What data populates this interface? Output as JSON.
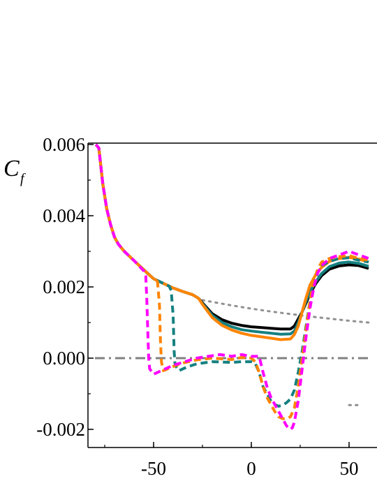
{
  "chart_data": {
    "type": "line",
    "title": "",
    "xlabel": "",
    "ylabel": {
      "main": "C",
      "sub": "f"
    },
    "xlim": [
      -80,
      60
    ],
    "ylim": [
      -0.0025,
      0.006
    ],
    "x_ticks": [
      {
        "value": -50,
        "label": "-50"
      },
      {
        "value": 0,
        "label": "0"
      },
      {
        "value": 50,
        "label": "50"
      }
    ],
    "y_ticks": [
      {
        "value": -0.002,
        "label": "-0.002"
      },
      {
        "value": 0.0,
        "label": "0.000"
      },
      {
        "value": 0.002,
        "label": "0.002"
      },
      {
        "value": 0.004,
        "label": "0.004"
      },
      {
        "value": 0.006,
        "label": "0.006"
      }
    ],
    "grid": false,
    "legend": "none",
    "series": [
      {
        "color": "#808080",
        "style": "dashdot",
        "width": 3,
        "x": [
          -80,
          60
        ],
        "y": [
          0.0,
          0.0
        ]
      },
      {
        "color": "#909090",
        "style": "dotted",
        "width": 3,
        "x": [
          -25,
          -10,
          0,
          10,
          20,
          30,
          40,
          50,
          60
        ],
        "y": [
          0.00163,
          0.00148,
          0.00139,
          0.00131,
          0.00124,
          0.00117,
          0.00111,
          0.00105,
          0.001
        ]
      },
      {
        "color": "#909090",
        "style": "dotted",
        "width": 3,
        "x": [
          50,
          56
        ],
        "y": [
          -0.00132,
          -0.00132
        ]
      },
      {
        "color": "#000000",
        "style": "solid",
        "width": 4,
        "x": [
          -79.5,
          -78,
          -76,
          -74,
          -72,
          -70,
          -68,
          -65,
          -60,
          -55,
          -50,
          -45,
          -40,
          -35,
          -30,
          -27,
          -25,
          -20,
          -15,
          -10,
          -5,
          0,
          5,
          10,
          15,
          20,
          22,
          24,
          26,
          28,
          30,
          33,
          36,
          40,
          45,
          50,
          55,
          60
        ],
        "y": [
          0.006,
          0.0059,
          0.0049,
          0.0042,
          0.00375,
          0.0034,
          0.0032,
          0.003,
          0.00274,
          0.00248,
          0.00223,
          0.0021,
          0.00197,
          0.00187,
          0.00178,
          0.00168,
          0.00155,
          0.00125,
          0.00108,
          0.00098,
          0.00092,
          0.00088,
          0.00086,
          0.00084,
          0.00082,
          0.00082,
          0.0009,
          0.0011,
          0.0013,
          0.00155,
          0.0018,
          0.0021,
          0.00232,
          0.0025,
          0.00259,
          0.00262,
          0.0026,
          0.00252
        ]
      },
      {
        "color": "#158080",
        "style": "solid",
        "width": 4,
        "x": [
          -79.5,
          -78,
          -76,
          -74,
          -72,
          -70,
          -68,
          -65,
          -60,
          -55,
          -50,
          -45,
          -40,
          -35,
          -30,
          -27,
          -25,
          -20,
          -15,
          -10,
          -5,
          0,
          5,
          10,
          15,
          20,
          22,
          24,
          26,
          28,
          30,
          33,
          36,
          40,
          45,
          50,
          55,
          60
        ],
        "y": [
          0.006,
          0.0059,
          0.0049,
          0.0042,
          0.00375,
          0.0034,
          0.0032,
          0.003,
          0.00274,
          0.00248,
          0.00223,
          0.0021,
          0.00197,
          0.00187,
          0.00178,
          0.00168,
          0.00153,
          0.0012,
          0.001,
          0.00088,
          0.0008,
          0.00076,
          0.00073,
          0.0007,
          0.00067,
          0.00068,
          0.00076,
          0.001,
          0.0013,
          0.0016,
          0.00187,
          0.00215,
          0.00238,
          0.00257,
          0.00267,
          0.0027,
          0.00266,
          0.00258
        ]
      },
      {
        "color": "#ff8400",
        "style": "solid",
        "width": 4,
        "x": [
          -79.5,
          -78,
          -76,
          -74,
          -72,
          -70,
          -68,
          -65,
          -60,
          -55,
          -50,
          -45,
          -40,
          -35,
          -30,
          -27,
          -25,
          -20,
          -15,
          -10,
          -5,
          0,
          5,
          10,
          15,
          20,
          22,
          24,
          26,
          28,
          30,
          33,
          36,
          40,
          45,
          50,
          55,
          60
        ],
        "y": [
          0.006,
          0.0059,
          0.0049,
          0.0042,
          0.00375,
          0.0034,
          0.0032,
          0.003,
          0.00274,
          0.00248,
          0.00223,
          0.0021,
          0.00197,
          0.00187,
          0.00178,
          0.00168,
          0.00151,
          0.00114,
          0.00092,
          0.00079,
          0.0007,
          0.00064,
          0.0006,
          0.00056,
          0.00052,
          0.00054,
          0.00066,
          0.0009,
          0.0013,
          0.0017,
          0.00205,
          0.00235,
          0.00255,
          0.00272,
          0.0028,
          0.00283,
          0.00278,
          0.0027
        ]
      },
      {
        "color": "#158080",
        "style": "dashed",
        "width": 4,
        "x": [
          -79.5,
          -78,
          -76,
          -74,
          -72,
          -70,
          -68,
          -65,
          -60,
          -55,
          -50,
          -45,
          -42,
          -41,
          -40,
          -39.5,
          -39,
          -37,
          -33,
          -28,
          -20,
          -10,
          -5,
          0,
          2,
          4,
          6,
          8,
          10,
          12,
          14,
          16,
          18,
          20,
          22,
          24,
          26,
          28,
          30,
          32,
          34,
          36,
          40,
          45,
          50,
          55,
          60
        ],
        "y": [
          0.006,
          0.0059,
          0.0049,
          0.0042,
          0.00375,
          0.0034,
          0.0032,
          0.003,
          0.00274,
          0.00248,
          0.00223,
          0.0021,
          0.00202,
          0.0019,
          0.0012,
          0.0002,
          -0.0002,
          -0.00035,
          -0.00025,
          -0.00016,
          -0.0001,
          -0.00012,
          -0.0001,
          -0.0001,
          -0.00015,
          -0.0004,
          -0.0008,
          -0.001,
          -0.0012,
          -0.0013,
          -0.00135,
          -0.00132,
          -0.00125,
          -0.00115,
          -0.0009,
          -0.0004,
          0.0002,
          0.0009,
          0.0016,
          0.0021,
          0.0024,
          0.0026,
          0.00272,
          0.0028,
          0.00282,
          0.00275,
          0.0027
        ]
      },
      {
        "color": "#ff8400",
        "style": "dashed",
        "width": 4,
        "x": [
          -79.5,
          -78,
          -76,
          -74,
          -72,
          -70,
          -68,
          -65,
          -60,
          -55,
          -50,
          -48,
          -47,
          -46.5,
          -46,
          -45,
          -42,
          -36,
          -28,
          -20,
          -10,
          -5,
          0,
          2,
          4,
          6,
          8,
          10,
          12,
          14,
          16,
          18,
          20,
          22,
          24,
          26,
          28,
          30,
          32,
          34,
          36,
          40,
          45,
          50,
          55,
          60
        ],
        "y": [
          0.006,
          0.0059,
          0.0049,
          0.0042,
          0.00375,
          0.0034,
          0.0032,
          0.003,
          0.00274,
          0.00248,
          0.00223,
          0.00215,
          0.0015,
          0.0005,
          -0.0001,
          -0.00035,
          -0.00028,
          -0.00015,
          -5e-05,
          0.0,
          -4e-05,
          2e-05,
          0.0,
          -0.0001,
          -0.0004,
          -0.0008,
          -0.0011,
          -0.0013,
          -0.0015,
          -0.00165,
          -0.0017,
          -0.0017,
          -0.00165,
          -0.0014,
          -0.0008,
          0.0,
          0.0008,
          0.0016,
          0.0022,
          0.0025,
          0.0027,
          0.0028,
          0.00285,
          0.00288,
          0.0028,
          0.00275
        ]
      },
      {
        "color": "#ff00ff",
        "style": "dashed",
        "width": 4,
        "x": [
          -79.5,
          -78,
          -76,
          -74,
          -72,
          -70,
          -68,
          -65,
          -60,
          -55,
          -54,
          -53.5,
          -53,
          -52.5,
          -52,
          -50,
          -46,
          -40,
          -34,
          -28,
          -22,
          -16,
          -10,
          -5,
          0,
          2,
          4,
          6,
          8,
          10,
          12,
          14,
          16,
          18,
          20,
          21,
          22,
          24,
          26,
          28,
          30,
          32,
          34,
          36,
          40,
          45,
          50,
          55,
          60
        ],
        "y": [
          0.006,
          0.0059,
          0.0049,
          0.0042,
          0.00375,
          0.0034,
          0.0032,
          0.003,
          0.00274,
          0.00245,
          0.0023,
          0.0017,
          0.0008,
          0.0,
          -0.0003,
          -0.00045,
          -0.00035,
          -0.0002,
          -0.0001,
          0.0,
          5e-05,
          0.0001,
          5e-05,
          0.0001,
          5e-05,
          5e-05,
          5e-05,
          -0.0004,
          -0.0008,
          -0.0011,
          -0.0013,
          -0.0015,
          -0.0017,
          -0.0019,
          -0.002,
          -0.00195,
          -0.0018,
          -0.0012,
          -0.0003,
          0.0006,
          0.0014,
          0.002,
          0.0024,
          0.0026,
          0.0028,
          0.0029,
          0.003,
          0.0029,
          0.0028
        ]
      }
    ]
  }
}
